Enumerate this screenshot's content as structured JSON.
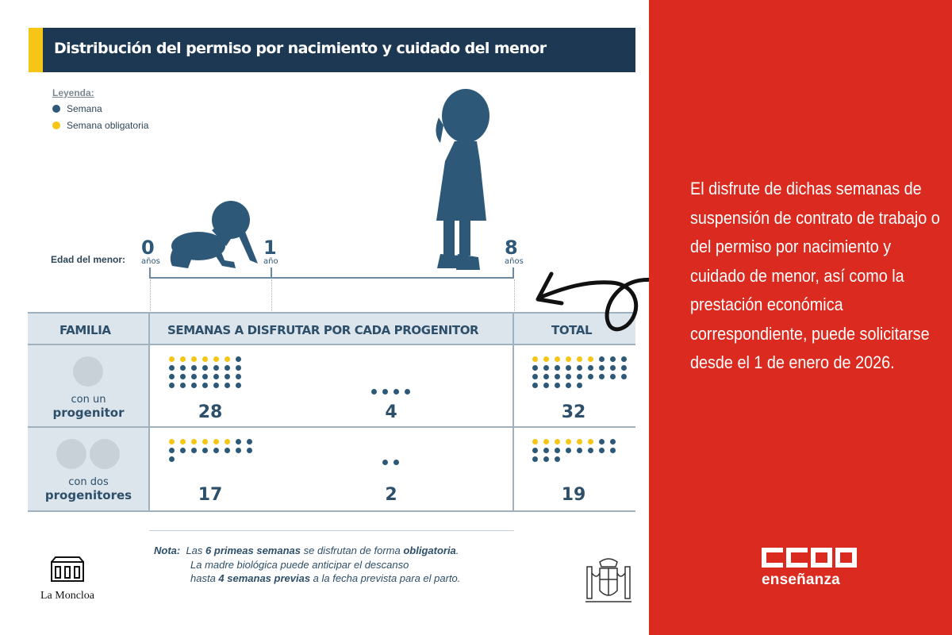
{
  "title": "Distribución del permiso por nacimiento y cuidado del menor",
  "legend": {
    "title": "Leyenda:",
    "items": [
      {
        "label": "Semana",
        "color": "#2d5878"
      },
      {
        "label": "Semana obligatoria",
        "color": "#f6c617"
      }
    ]
  },
  "age": {
    "label": "Edad del menor:",
    "marks": [
      {
        "value": "0",
        "unit": "años"
      },
      {
        "value": "1",
        "unit": "año"
      },
      {
        "value": "8",
        "unit": "años"
      }
    ]
  },
  "table": {
    "headers": [
      "FAMILIA",
      "SEMANAS A DISFRUTAR POR CADA PROGENITOR",
      "TOTAL"
    ],
    "rows": [
      {
        "family_line1": "con un",
        "family_line2": "progenitor",
        "avatars": 1,
        "first_year": {
          "weeks": "28",
          "mandatory": 6,
          "total_dots": 28
        },
        "until_eight": {
          "weeks": "4",
          "mandatory": 0,
          "total_dots": 4
        },
        "total": {
          "weeks": "32",
          "mandatory": 6,
          "total_dots": 32
        }
      },
      {
        "family_line1": "con dos",
        "family_line2": "progenitores",
        "avatars": 2,
        "first_year": {
          "weeks": "17",
          "mandatory": 6,
          "total_dots": 17
        },
        "until_eight": {
          "weeks": "2",
          "mandatory": 0,
          "total_dots": 2
        },
        "total": {
          "weeks": "19",
          "mandatory": 6,
          "total_dots": 19
        }
      }
    ]
  },
  "note": {
    "label": "Nota:",
    "line1_a": "Las ",
    "line1_b": "6 primeas semanas",
    "line1_c": " se disfrutan de forma ",
    "line1_d": "obligatoria",
    "line1_e": ".",
    "line2": "La madre biológica puede anticipar el descanso",
    "line3_a": "hasta ",
    "line3_b": "4 semanas previas",
    "line3_c": " a la fecha prevista para el parto."
  },
  "moncloa": "La Moncloa",
  "side_text": "El disfrute de dichas semanas de suspensión de contrato de trabajo o del permiso por nacimiento y cuidado de menor, así como la prestación económica correspondiente, puede solicitarse desde el 1 de enero de 2026.",
  "brand": {
    "sub": "enseñanza",
    "accent": "#db2a1f"
  }
}
